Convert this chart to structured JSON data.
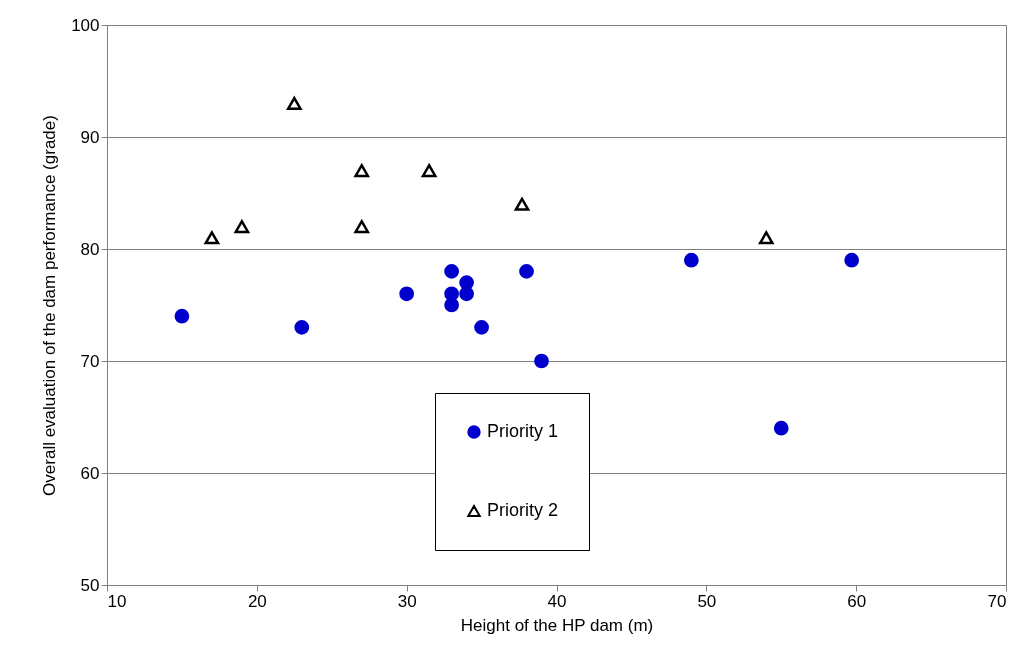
{
  "chart_data": {
    "type": "scatter",
    "xlabel": "Height of the HP dam (m)",
    "ylabel": "Overall evaluation of the dam performance (grade)",
    "xlim": [
      10,
      70
    ],
    "xticks": [
      10,
      20,
      30,
      40,
      50,
      60,
      70
    ],
    "ylim": [
      50,
      100
    ],
    "yticks": [
      50,
      60,
      70,
      80,
      90,
      100
    ],
    "grid": "y",
    "legend": "bottom",
    "series": [
      {
        "name": "Priority 1",
        "color": "#0000cc",
        "marker": "circle",
        "x": [
          15,
          23,
          30,
          33,
          33,
          33,
          34,
          34,
          35,
          38,
          39,
          49,
          55,
          59.7
        ],
        "values": [
          74,
          73,
          76,
          78,
          76,
          75,
          77,
          76,
          73,
          78,
          70,
          79,
          64,
          79
        ]
      },
      {
        "name": "Priority 2",
        "color": "#000000",
        "marker": "triangle",
        "x": [
          17,
          19,
          22.5,
          27,
          27,
          31.5,
          37.7,
          54
        ],
        "values": [
          81,
          82,
          93,
          87,
          82,
          87,
          84,
          81
        ]
      }
    ]
  }
}
